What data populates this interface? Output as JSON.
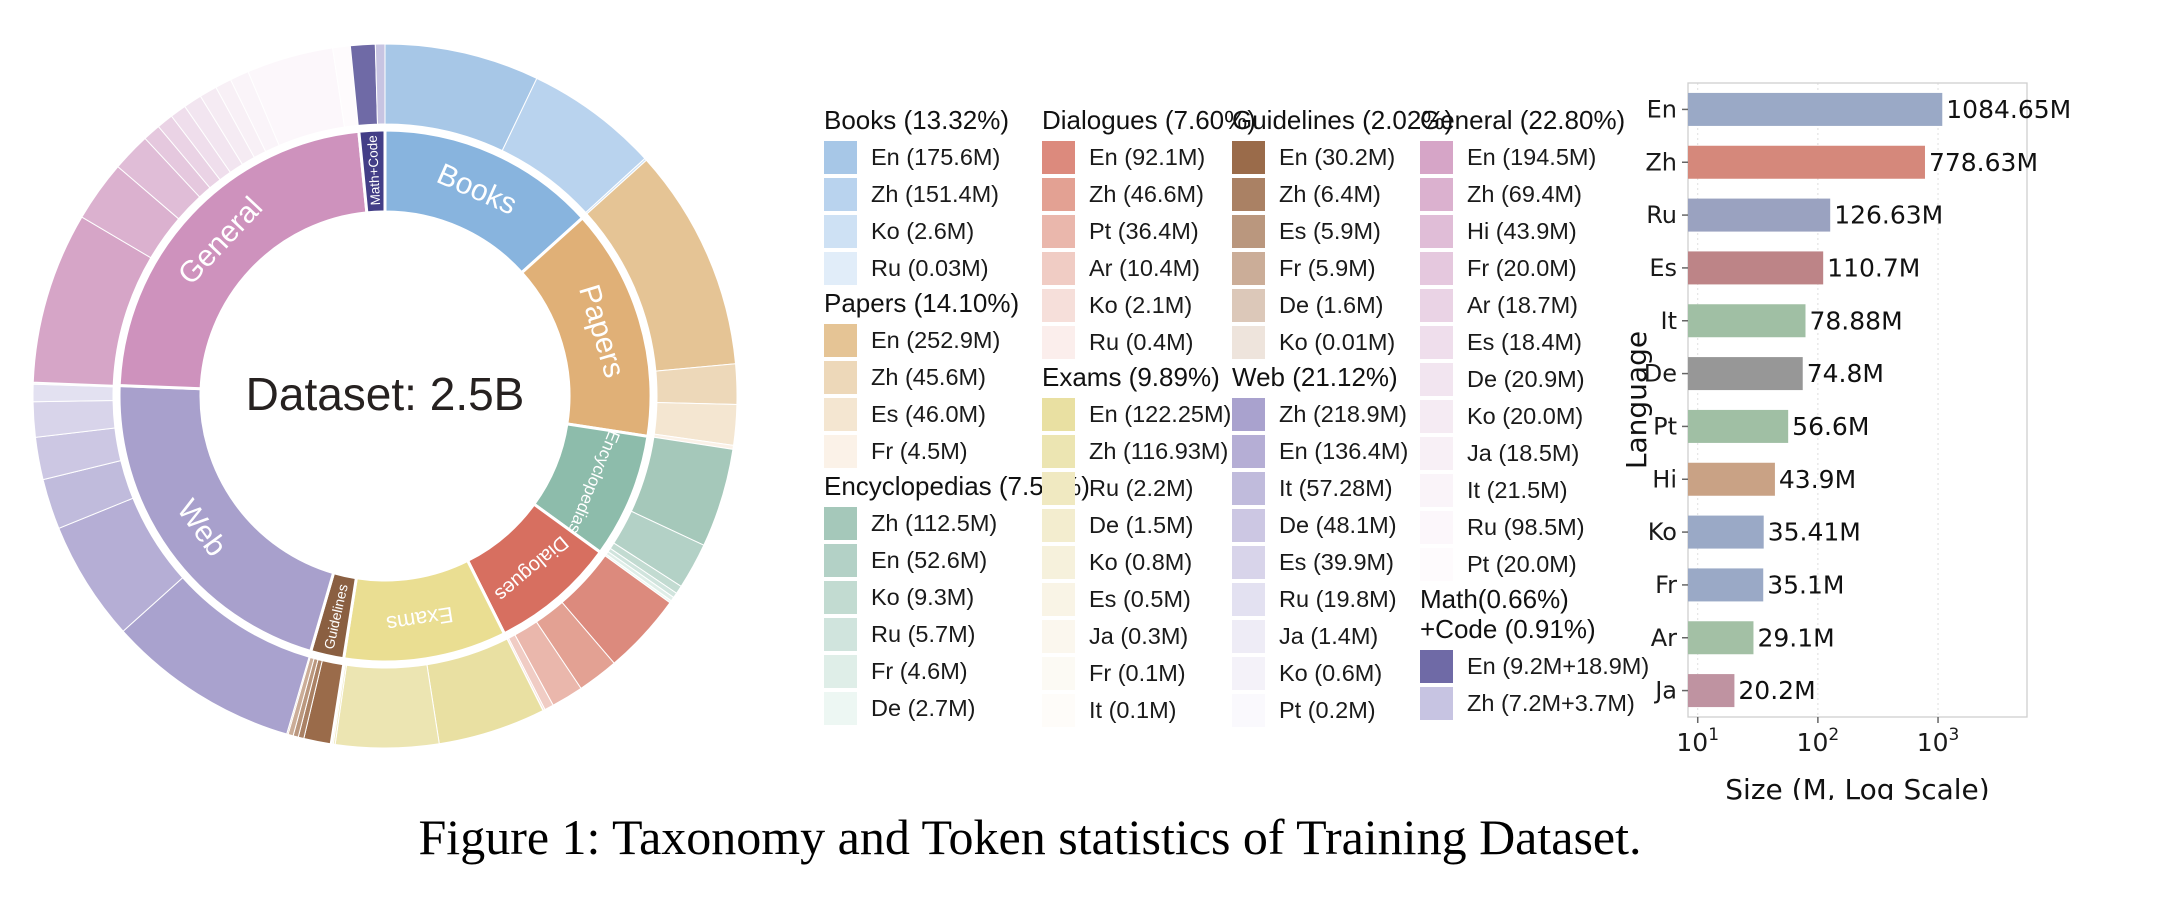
{
  "caption": "Figure 1: Taxonomy and Token statistics of Training Dataset.",
  "chart_data": [
    {
      "type": "sunburst",
      "center_label": "Dataset: 2.5B",
      "categories": [
        {
          "key": "books",
          "name": "Books",
          "header": "Books (13.32%)",
          "pct": 13.32,
          "inner_color": "#88b4de",
          "label_mode": "tangential",
          "label_size": 30,
          "items": [
            {
              "lang": "En",
              "label": "En (175.6M)",
              "value": 175.6,
              "color": "#a7c7e7"
            },
            {
              "lang": "Zh",
              "label": "Zh (151.4M)",
              "value": 151.4,
              "color": "#b9d3ee"
            },
            {
              "lang": "Ko",
              "label": "Ko (2.6M)",
              "value": 2.6,
              "color": "#cee1f4"
            },
            {
              "lang": "Ru",
              "label": "Ru (0.03M)",
              "value": 0.03,
              "color": "#e1edf9"
            }
          ]
        },
        {
          "key": "papers",
          "name": "Papers",
          "header": "Papers (14.10%)",
          "pct": 14.1,
          "inner_color": "#e0b077",
          "label_mode": "tangential",
          "label_size": 30,
          "items": [
            {
              "lang": "En",
              "label": "En (252.9M)",
              "value": 252.9,
              "color": "#e5c495"
            },
            {
              "lang": "Zh",
              "label": "Zh (45.6M)",
              "value": 45.6,
              "color": "#edd8b9"
            },
            {
              "lang": "Es",
              "label": "Es (46.0M)",
              "value": 46.0,
              "color": "#f4e6d1"
            },
            {
              "lang": "Fr",
              "label": "Fr (4.5M)",
              "value": 4.5,
              "color": "#fbf2e8"
            }
          ]
        },
        {
          "key": "encyclopedias",
          "name": "Encyclopedias",
          "header": "Encyclopedias (7.57%)",
          "pct": 7.57,
          "inner_color": "#8dbcab",
          "label_mode": "tangential",
          "label_size": 17,
          "items": [
            {
              "lang": "Zh",
              "label": "Zh (112.5M)",
              "value": 112.5,
              "color": "#a5c8ba"
            },
            {
              "lang": "En",
              "label": "En (52.6M)",
              "value": 52.6,
              "color": "#b3d1c6"
            },
            {
              "lang": "Ko",
              "label": "Ko (9.3M)",
              "value": 9.3,
              "color": "#c2dbd1"
            },
            {
              "lang": "Ru",
              "label": "Ru (5.7M)",
              "value": 5.7,
              "color": "#d0e4dd"
            },
            {
              "lang": "Fr",
              "label": "Fr (4.6M)",
              "value": 4.6,
              "color": "#dfeee8"
            },
            {
              "lang": "De",
              "label": "De (2.7M)",
              "value": 2.7,
              "color": "#edf7f3"
            }
          ]
        },
        {
          "key": "dialogues",
          "name": "Dialogues",
          "header": "Dialogues (7.60%)",
          "pct": 7.6,
          "inner_color": "#d76f60",
          "label_mode": "tangential",
          "label_size": 20,
          "items": [
            {
              "lang": "En",
              "label": "En (92.1M)",
              "value": 92.1,
              "color": "#dc8a7d"
            },
            {
              "lang": "Zh",
              "label": "Zh (46.6M)",
              "value": 46.6,
              "color": "#e3a193"
            },
            {
              "lang": "Pt",
              "label": "Pt (36.4M)",
              "value": 36.4,
              "color": "#eab7ac"
            },
            {
              "lang": "Ar",
              "label": "Ar (10.4M)",
              "value": 10.4,
              "color": "#f0ccc4"
            },
            {
              "lang": "Ko",
              "label": "Ko (2.1M)",
              "value": 2.1,
              "color": "#f6dfda"
            },
            {
              "lang": "Ru",
              "label": "Ru (0.4M)",
              "value": 0.4,
              "color": "#fbeeec"
            }
          ]
        },
        {
          "key": "exams",
          "name": "Exams",
          "header": "Exams (9.89%)",
          "pct": 9.89,
          "inner_color": "#eade92",
          "label_mode": "tangential",
          "label_size": 22,
          "items": [
            {
              "lang": "En",
              "label": "En (122.25M)",
              "value": 122.25,
              "color": "#e9e0a2"
            },
            {
              "lang": "Zh",
              "label": "Zh (116.93M)",
              "value": 116.93,
              "color": "#ece5b2"
            },
            {
              "lang": "Ru",
              "label": "Ru (2.2M)",
              "value": 2.2,
              "color": "#f0e9c1"
            },
            {
              "lang": "De",
              "label": "De (1.5M)",
              "value": 1.5,
              "color": "#f3edcf"
            },
            {
              "lang": "Ko",
              "label": "Ko (0.8M)",
              "value": 0.8,
              "color": "#f6f1dc"
            },
            {
              "lang": "Es",
              "label": "Es (0.5M)",
              "value": 0.5,
              "color": "#f9f4e6"
            },
            {
              "lang": "Ja",
              "label": "Ja (0.3M)",
              "value": 0.3,
              "color": "#fbf7ee"
            },
            {
              "lang": "Fr",
              "label": "Fr (0.1M)",
              "value": 0.1,
              "color": "#fcfaf4"
            },
            {
              "lang": "It",
              "label": "It (0.1M)",
              "value": 0.1,
              "color": "#fefcf9"
            }
          ]
        },
        {
          "key": "guidelines",
          "name": "Guidelines",
          "header": "Guidelines (2.02%)",
          "pct": 2.02,
          "inner_color": "#8a5f41",
          "label_mode": "radial-in",
          "label_size": 14,
          "items": [
            {
              "lang": "En",
              "label": "En (30.2M)",
              "value": 30.2,
              "color": "#9a6b4a"
            },
            {
              "lang": "Zh",
              "label": "Zh (6.4M)",
              "value": 6.4,
              "color": "#aa8164"
            },
            {
              "lang": "Es",
              "label": "Es (5.9M)",
              "value": 5.9,
              "color": "#ba977e"
            },
            {
              "lang": "Fr",
              "label": "Fr (5.9M)",
              "value": 5.9,
              "color": "#cbad98"
            },
            {
              "lang": "De",
              "label": "De (1.6M)",
              "value": 1.6,
              "color": "#dcc8b9"
            },
            {
              "lang": "Ko",
              "label": "Ko (0.01M)",
              "value": 0.01,
              "color": "#eee4dc"
            }
          ]
        },
        {
          "key": "web",
          "name": "Web",
          "header": "Web (21.12%)",
          "pct": 21.12,
          "inner_color": "#a8a0cc",
          "label_mode": "tangential-flip",
          "label_size": 30,
          "items": [
            {
              "lang": "Zh",
              "label": "Zh (218.9M)",
              "value": 218.9,
              "color": "#a9a2ce"
            },
            {
              "lang": "En",
              "label": "En (136.4M)",
              "value": 136.4,
              "color": "#b5aed5"
            },
            {
              "lang": "It",
              "label": "It (57.28M)",
              "value": 57.28,
              "color": "#c0bbdc"
            },
            {
              "lang": "De",
              "label": "De (48.1M)",
              "value": 48.1,
              "color": "#ccc7e3"
            },
            {
              "lang": "Es",
              "label": "Es (39.9M)",
              "value": 39.9,
              "color": "#d8d4ea"
            },
            {
              "lang": "Ru",
              "label": "Ru (19.8M)",
              "value": 19.8,
              "color": "#e3e1f1"
            },
            {
              "lang": "Ja",
              "label": "Ja (1.4M)",
              "value": 1.4,
              "color": "#eeecf6"
            },
            {
              "lang": "Ko",
              "label": "Ko (0.6M)",
              "value": 0.6,
              "color": "#f4f2f9"
            },
            {
              "lang": "Pt",
              "label": "Pt (0.2M)",
              "value": 0.2,
              "color": "#faf9fd"
            }
          ]
        },
        {
          "key": "general",
          "name": "General",
          "header": "General (22.80%)",
          "pct": 22.8,
          "inner_color": "#ce92bd",
          "label_mode": "tangential",
          "label_size": 30,
          "items": [
            {
              "lang": "En",
              "label": "En (194.5M)",
              "value": 194.5,
              "color": "#d6a5c7"
            },
            {
              "lang": "Zh",
              "label": "Zh (69.4M)",
              "value": 69.4,
              "color": "#dbb1cf"
            },
            {
              "lang": "Hi",
              "label": "Hi (43.9M)",
              "value": 43.9,
              "color": "#e0bdd7"
            },
            {
              "lang": "Fr",
              "label": "Fr (20.0M)",
              "value": 20.0,
              "color": "#e5c8de"
            },
            {
              "lang": "Ar",
              "label": "Ar (18.7M)",
              "value": 18.7,
              "color": "#ead3e5"
            },
            {
              "lang": "Es",
              "label": "Es (18.4M)",
              "value": 18.4,
              "color": "#efdeec"
            },
            {
              "lang": "De",
              "label": "De (20.9M)",
              "value": 20.9,
              "color": "#f2e5f0"
            },
            {
              "lang": "Ko",
              "label": "Ko (20.0M)",
              "value": 20.0,
              "color": "#f5ebf3"
            },
            {
              "lang": "Ja",
              "label": "Ja (18.5M)",
              "value": 18.5,
              "color": "#f8f0f6"
            },
            {
              "lang": "It",
              "label": "It (21.5M)",
              "value": 21.5,
              "color": "#faf4f9"
            },
            {
              "lang": "Ru",
              "label": "Ru (98.5M)",
              "value": 98.5,
              "color": "#fcf7fb"
            },
            {
              "lang": "Pt",
              "label": "Pt (20.0M)",
              "value": 20.0,
              "color": "#fefbfd"
            }
          ]
        },
        {
          "key": "mathcode",
          "name": "Math+Code",
          "header": "Math(0.66%)\n+Code (0.91%)",
          "pct": 1.57,
          "inner_color": "#433e87",
          "label_mode": "radial-out",
          "label_size": 13.5,
          "items": [
            {
              "lang": "En",
              "label": "En (9.2M+18.9M)",
              "value": 28.1,
              "color": "#6f6aa6"
            },
            {
              "lang": "Zh",
              "label": "Zh (7.2M+3.7M)",
              "value": 10.9,
              "color": "#c7c4e2"
            }
          ]
        }
      ]
    },
    {
      "type": "bar",
      "orientation": "horizontal",
      "xscale": "log",
      "categories": [
        "En",
        "Zh",
        "Ru",
        "Es",
        "It",
        "De",
        "Pt",
        "Hi",
        "Ko",
        "Fr",
        "Ar",
        "Ja"
      ],
      "values": [
        1084.65,
        778.63,
        126.63,
        110.7,
        78.88,
        74.8,
        56.6,
        43.9,
        35.41,
        35.1,
        29.1,
        20.2
      ],
      "bar_labels": [
        "1084.65M",
        "778.63M",
        "126.63M",
        "110.7M",
        "78.88M",
        "74.8M",
        "56.6M",
        "43.9M",
        "35.41M",
        "35.1M",
        "29.1M",
        "20.2M"
      ],
      "bar_colors": [
        "#9aa9c6",
        "#d5887b",
        "#9aa2c0",
        "#bd8487",
        "#a0bfa4",
        "#979797",
        "#a0bfa4",
        "#c9a285",
        "#9aa9c6",
        "#9aa9c6",
        "#a3c0a5",
        "#bf93a1"
      ],
      "xlabel": "Size (M, Log Scale)",
      "ylabel": "Language",
      "xticks": [
        10,
        100,
        1000
      ],
      "xlim": [
        8.3,
        5500
      ],
      "grid": true
    }
  ],
  "legend": {
    "columns": [
      [
        "books",
        "papers",
        "encyclopedias"
      ],
      [
        "dialogues",
        "exams"
      ],
      [
        "guidelines",
        "web"
      ],
      [
        "general",
        "mathcode"
      ]
    ]
  }
}
